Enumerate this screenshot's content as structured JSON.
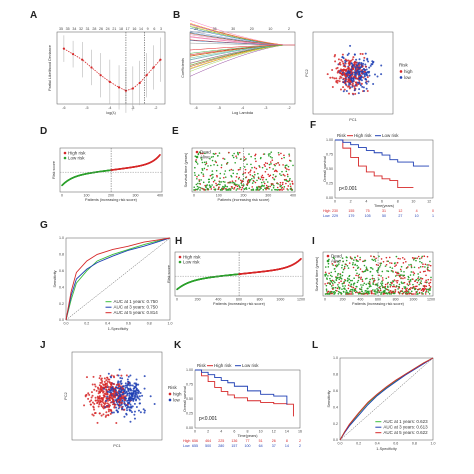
{
  "panel_labels": [
    "A",
    "B",
    "C",
    "D",
    "E",
    "F",
    "G",
    "H",
    "I",
    "J",
    "K",
    "L"
  ],
  "colors": {
    "high": "#d62728",
    "low": "#1f3fb4",
    "alive": "#2ca02c",
    "dead": "#d62728",
    "green": "#3cbf3c",
    "blue": "#1f3fb4",
    "red": "#d62728",
    "yellow": "#e0e020",
    "ref": "#555555",
    "cv_curve": "#d62728"
  },
  "chart_data": [
    {
      "panel": "A",
      "type": "line",
      "xlabel": "log(λ)",
      "ylabel": "Partial Likelihood Deviance",
      "top_ticks": [
        "35",
        "35",
        "34",
        "32",
        "31",
        "28",
        "26",
        "24",
        "21",
        "18",
        "17",
        "16",
        "14",
        "9",
        "6",
        "3"
      ],
      "xticks": [
        "-6",
        "-5",
        "-4",
        "-3",
        "-2"
      ],
      "x": [
        -6.0,
        -5.6,
        -5.2,
        -4.8,
        -4.4,
        -4.0,
        -3.6,
        -3.3,
        -3.0,
        -2.7,
        -2.4,
        -2.1,
        -1.8
      ],
      "values": [
        13.3,
        13.25,
        13.2,
        13.13,
        13.06,
        13.0,
        12.95,
        12.92,
        12.94,
        12.99,
        13.06,
        13.13,
        13.2
      ],
      "error": [
        0.03,
        0.03,
        0.04,
        0.04,
        0.05,
        0.05,
        0.05,
        0.05,
        0.05,
        0.05,
        0.05,
        0.05,
        0.05
      ],
      "vlines": [
        -3.3,
        -2.5
      ]
    },
    {
      "panel": "B",
      "type": "line",
      "xlabel": "Log Lambda",
      "ylabel": "Coefficients",
      "top_ticks": [
        "35",
        "35",
        "30",
        "20",
        "10",
        "2"
      ],
      "xticks": [
        "-6",
        "-5",
        "-4",
        "-3",
        "-2"
      ],
      "n_paths": 35
    },
    {
      "panel": "C",
      "type": "scatter",
      "xlabel": "PC1",
      "ylabel": "PC2",
      "legend_title": "Risk",
      "legend": [
        "high",
        "low"
      ],
      "n_points": 420
    },
    {
      "panel": "D",
      "type": "scatter",
      "ylabel": "Risk score",
      "xlabel": "Patients (increasing risk score)",
      "legend": [
        "High risk",
        "Low risk"
      ],
      "xticks": [
        "0",
        "100",
        "200",
        "300",
        "400"
      ],
      "n_points": 460,
      "cutoff_index": 230
    },
    {
      "panel": "E",
      "type": "scatter",
      "ylabel": "Survival time (years)",
      "xlabel": "Patients (increasing risk score)",
      "legend": [
        "Dead",
        "Alive"
      ],
      "xticks": [
        "0",
        "100",
        "200",
        "300",
        "400"
      ],
      "n_points": 460,
      "cutoff_index": 230
    },
    {
      "panel": "F",
      "type": "line",
      "ylabel": "Overall survival",
      "xlabel": "Time(years)",
      "legend_title": "Risk",
      "legend": [
        "High risk",
        "Low risk"
      ],
      "pvalue": "p<0.001",
      "xticks": [
        "0",
        "2",
        "4",
        "6",
        "8",
        "10",
        "12"
      ],
      "yticks": [
        "0.00",
        "0.25",
        "0.50",
        "0.75",
        "1.00"
      ],
      "series": [
        {
          "name": "High risk",
          "x": [
            0,
            1,
            2,
            3,
            4,
            5,
            6,
            7,
            8,
            10
          ],
          "values": [
            1.0,
            0.86,
            0.7,
            0.55,
            0.45,
            0.38,
            0.33,
            0.3,
            0.18,
            0.18
          ]
        },
        {
          "name": "Low risk",
          "x": [
            0,
            1,
            2,
            3,
            4,
            5,
            6,
            7,
            8,
            10,
            12
          ],
          "values": [
            1.0,
            0.96,
            0.92,
            0.87,
            0.82,
            0.78,
            0.74,
            0.66,
            0.62,
            0.55,
            0.55
          ]
        }
      ],
      "risk_table": {
        "high": [
          "230",
          "155",
          "75",
          "31",
          "12",
          "4",
          "0"
        ],
        "low": [
          "229",
          "179",
          "105",
          "50",
          "27",
          "10",
          "1"
        ]
      }
    },
    {
      "panel": "G",
      "type": "line",
      "xlabel": "1-Specificity",
      "ylabel": "Sensitivity",
      "xticks": [
        "0.0",
        "0.2",
        "0.4",
        "0.6",
        "0.8",
        "1.0"
      ],
      "yticks": [
        "0.0",
        "0.2",
        "0.4",
        "0.6",
        "0.8",
        "1.0"
      ],
      "series": [
        {
          "name": "AUC at 1 years: 0.750",
          "x": [
            0,
            0.05,
            0.1,
            0.2,
            0.3,
            0.45,
            0.6,
            0.75,
            0.9,
            1.0
          ],
          "values": [
            0,
            0.25,
            0.45,
            0.6,
            0.72,
            0.8,
            0.86,
            0.92,
            0.97,
            1.0
          ]
        },
        {
          "name": "AUC at 3 years: 0.750",
          "x": [
            0,
            0.05,
            0.1,
            0.2,
            0.3,
            0.45,
            0.6,
            0.75,
            0.9,
            1.0
          ],
          "values": [
            0,
            0.3,
            0.5,
            0.62,
            0.7,
            0.78,
            0.85,
            0.9,
            0.96,
            1.0
          ]
        },
        {
          "name": "AUC at 5 years: 0.814",
          "x": [
            0,
            0.05,
            0.1,
            0.2,
            0.3,
            0.45,
            0.6,
            0.75,
            0.9,
            1.0
          ],
          "values": [
            0,
            0.35,
            0.58,
            0.72,
            0.8,
            0.86,
            0.9,
            0.95,
            0.98,
            1.0
          ]
        }
      ]
    },
    {
      "panel": "H",
      "type": "scatter",
      "ylabel": "Risk score",
      "xlabel": "Patients (increasing risk score)",
      "legend": [
        "High risk",
        "Low risk"
      ],
      "xticks": [
        "0",
        "200",
        "400",
        "600",
        "800",
        "1000",
        "1200"
      ],
      "n_points": 700,
      "cutoff_index": 350
    },
    {
      "panel": "I",
      "type": "scatter",
      "ylabel": "Survival time (years)",
      "xlabel": "Patients (increasing risk score)",
      "legend": [
        "Dead",
        "Alive"
      ],
      "xticks": [
        "0",
        "200",
        "400",
        "600",
        "800",
        "1000",
        "1200"
      ],
      "n_points": 700,
      "cutoff_index": 350
    },
    {
      "panel": "J",
      "type": "scatter",
      "xlabel": "PC1",
      "ylabel": "PC2",
      "legend_title": "Risk",
      "legend": [
        "high",
        "low"
      ],
      "n_points": 600
    },
    {
      "panel": "K",
      "type": "line",
      "ylabel": "Overall survival",
      "xlabel": "Time(years)",
      "legend_title": "Risk",
      "legend": [
        "High risk",
        "Low risk"
      ],
      "pvalue": "p<0.001",
      "xticks": [
        "0",
        "2",
        "4",
        "6",
        "8",
        "10",
        "12",
        "14",
        "16"
      ],
      "yticks": [
        "0.00",
        "0.25",
        "0.50",
        "0.75",
        "1.00"
      ],
      "series": [
        {
          "name": "High risk",
          "x": [
            0,
            1,
            2,
            3,
            4,
            5,
            6,
            8,
            10,
            12,
            14,
            15
          ],
          "values": [
            1.0,
            0.9,
            0.8,
            0.7,
            0.63,
            0.57,
            0.52,
            0.47,
            0.44,
            0.42,
            0.41,
            0.2
          ]
        },
        {
          "name": "Low risk",
          "x": [
            0,
            1,
            2,
            3,
            4,
            5,
            6,
            8,
            10,
            12,
            14
          ],
          "values": [
            1.0,
            0.96,
            0.92,
            0.87,
            0.82,
            0.78,
            0.72,
            0.64,
            0.58,
            0.55,
            0.4
          ]
        }
      ],
      "risk_table": {
        "high": [
          "656",
          "464",
          "225",
          "136",
          "77",
          "51",
          "26",
          "8",
          "2"
        ],
        "low": [
          "655",
          "500",
          "280",
          "157",
          "100",
          "64",
          "37",
          "14",
          "2"
        ]
      }
    },
    {
      "panel": "L",
      "type": "line",
      "xlabel": "1-Specificity",
      "ylabel": "Sensitivity",
      "xticks": [
        "0.0",
        "0.2",
        "0.4",
        "0.6",
        "0.8",
        "1.0"
      ],
      "yticks": [
        "0.0",
        "0.2",
        "0.4",
        "0.6",
        "0.8",
        "1.0"
      ],
      "series": [
        {
          "name": "AUC at 1 years: 0.623",
          "x": [
            0,
            0.05,
            0.1,
            0.2,
            0.3,
            0.4,
            0.5,
            0.6,
            0.7,
            0.8,
            0.9,
            1.0
          ],
          "values": [
            0,
            0.1,
            0.18,
            0.32,
            0.45,
            0.55,
            0.64,
            0.72,
            0.8,
            0.87,
            0.94,
            1.0
          ]
        },
        {
          "name": "AUC at 3 years: 0.613",
          "x": [
            0,
            0.05,
            0.1,
            0.2,
            0.3,
            0.4,
            0.5,
            0.6,
            0.7,
            0.8,
            0.9,
            1.0
          ],
          "values": [
            0,
            0.09,
            0.17,
            0.3,
            0.43,
            0.54,
            0.63,
            0.71,
            0.79,
            0.86,
            0.93,
            1.0
          ]
        },
        {
          "name": "AUC at 5 years: 0.622",
          "x": [
            0,
            0.05,
            0.1,
            0.2,
            0.3,
            0.4,
            0.5,
            0.6,
            0.7,
            0.8,
            0.9,
            1.0
          ],
          "values": [
            0,
            0.1,
            0.19,
            0.33,
            0.46,
            0.56,
            0.65,
            0.73,
            0.8,
            0.87,
            0.94,
            1.0
          ]
        }
      ]
    }
  ]
}
